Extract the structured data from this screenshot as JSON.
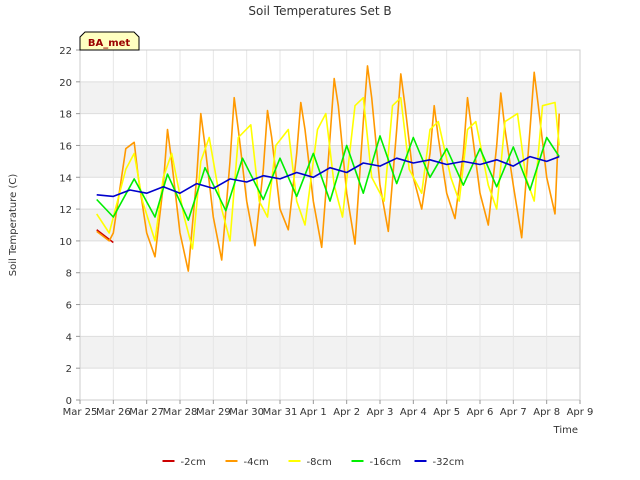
{
  "chart_data": {
    "type": "line",
    "title": "Soil Temperatures Set B",
    "xlabel": "Time",
    "ylabel": "Soil Temperature (C)",
    "badge": "BA_met",
    "ylim": [
      0,
      22
    ],
    "yticks": [
      0,
      2,
      4,
      6,
      8,
      10,
      12,
      14,
      16,
      18,
      20,
      22
    ],
    "xlim": [
      "Mar 25",
      "Apr 9"
    ],
    "xticks": [
      "Mar 25",
      "Mar 26",
      "Mar 27",
      "Mar 28",
      "Mar 29",
      "Mar 30",
      "Mar 31",
      "Apr 1",
      "Apr 2",
      "Apr 3",
      "Apr 4",
      "Apr 5",
      "Apr 6",
      "Apr 7",
      "Apr 8",
      "Apr 9"
    ],
    "grid": true,
    "legend_position": "bottom",
    "series": [
      {
        "name": "-2cm",
        "color": "#cc0000",
        "x": [
          "Mar 25 12:00",
          "Mar 25 18:00",
          "Mar 26 00:00"
        ],
        "values": [
          10.7,
          10.3,
          9.9
        ]
      },
      {
        "name": "-4cm",
        "color": "#ff9900",
        "x": [
          "Mar 25 12:00",
          "Mar 25 21:00",
          "Mar 26 00:00",
          "Mar 26 09:00",
          "Mar 26 15:00",
          "Mar 26 18:00",
          "Mar 27 00:00",
          "Mar 27 06:00",
          "Mar 27 12:00",
          "Mar 27 15:00",
          "Mar 27 18:00",
          "Mar 28 00:00",
          "Mar 28 06:00",
          "Mar 28 12:00",
          "Mar 28 15:00",
          "Mar 28 18:00",
          "Mar 29 00:00",
          "Mar 29 06:00",
          "Mar 29 12:00",
          "Mar 29 15:00",
          "Mar 29 18:00",
          "Mar 30 00:00",
          "Mar 30 06:00",
          "Mar 30 12:00",
          "Mar 30 15:00",
          "Mar 30 18:00",
          "Mar 31 00:00",
          "Mar 31 06:00",
          "Mar 31 12:00",
          "Mar 31 15:00",
          "Mar 31 18:00",
          "Apr 1 00:00",
          "Apr 1 06:00",
          "Apr 1 12:00",
          "Apr 1 15:00",
          "Apr 1 18:00",
          "Apr 2 00:00",
          "Apr 2 06:00",
          "Apr 2 12:00",
          "Apr 2 15:00",
          "Apr 2 18:00",
          "Apr 3 00:00",
          "Apr 3 06:00",
          "Apr 3 12:00",
          "Apr 3 15:00",
          "Apr 3 18:00",
          "Apr 4 00:00",
          "Apr 4 06:00",
          "Apr 4 12:00",
          "Apr 4 15:00",
          "Apr 4 18:00",
          "Apr 5 00:00",
          "Apr 5 06:00",
          "Apr 5 12:00",
          "Apr 5 15:00",
          "Apr 5 18:00",
          "Apr 6 00:00",
          "Apr 6 06:00",
          "Apr 6 12:00",
          "Apr 6 15:00",
          "Apr 6 18:00",
          "Apr 7 00:00",
          "Apr 7 06:00",
          "Apr 7 12:00",
          "Apr 7 15:00",
          "Apr 7 18:00",
          "Apr 8 00:00",
          "Apr 8 06:00",
          "Apr 8 09:00"
        ],
        "values": [
          10.6,
          10.0,
          10.5,
          15.8,
          16.2,
          14.0,
          10.5,
          9.0,
          13.5,
          17.0,
          15.0,
          10.5,
          8.1,
          14.0,
          18.0,
          16.0,
          11.5,
          8.8,
          15.0,
          19.0,
          17.0,
          12.5,
          9.7,
          14.5,
          18.2,
          16.5,
          12.0,
          10.7,
          15.5,
          18.7,
          17.0,
          12.5,
          9.6,
          16.5,
          20.2,
          18.5,
          13.0,
          9.8,
          17.5,
          21.0,
          19.0,
          13.5,
          10.6,
          17.0,
          20.5,
          18.5,
          14.0,
          12.0,
          15.5,
          18.5,
          16.5,
          13.0,
          11.4,
          15.5,
          19.0,
          17.0,
          13.0,
          11.0,
          16.0,
          19.3,
          17.0,
          13.5,
          10.2,
          17.0,
          20.6,
          18.5,
          14.0,
          11.7,
          18.0
        ]
      },
      {
        "name": "-8cm",
        "color": "#ffff00",
        "x": [
          "Mar 25 12:00",
          "Mar 25 21:00",
          "Mar 26 09:00",
          "Mar 26 15:00",
          "Mar 26 21:00",
          "Mar 27 06:00",
          "Mar 27 12:00",
          "Mar 27 18:00",
          "Mar 28 03:00",
          "Mar 28 09:00",
          "Mar 28 15:00",
          "Mar 28 21:00",
          "Mar 29 06:00",
          "Mar 29 12:00",
          "Mar 29 18:00",
          "Mar 30 03:00",
          "Mar 30 09:00",
          "Mar 30 15:00",
          "Mar 30 21:00",
          "Mar 31 06:00",
          "Mar 31 12:00",
          "Mar 31 18:00",
          "Apr 1 03:00",
          "Apr 1 09:00",
          "Apr 1 15:00",
          "Apr 1 21:00",
          "Apr 2 06:00",
          "Apr 2 12:00",
          "Apr 2 18:00",
          "Apr 3 03:00",
          "Apr 3 09:00",
          "Apr 3 15:00",
          "Apr 3 21:00",
          "Apr 4 06:00",
          "Apr 4 12:00",
          "Apr 4 18:00",
          "Apr 5 03:00",
          "Apr 5 09:00",
          "Apr 5 15:00",
          "Apr 5 21:00",
          "Apr 6 06:00",
          "Apr 6 12:00",
          "Apr 6 18:00",
          "Apr 7 03:00",
          "Apr 7 09:00",
          "Apr 7 15:00",
          "Apr 7 21:00",
          "Apr 8 06:00",
          "Apr 8 09:00"
        ],
        "values": [
          11.7,
          10.5,
          14.5,
          15.5,
          12.5,
          10.0,
          14.0,
          15.5,
          11.5,
          9.5,
          15.0,
          16.5,
          12.0,
          10.0,
          16.5,
          17.3,
          12.5,
          11.5,
          16.0,
          17.0,
          12.5,
          11.0,
          17.0,
          18.0,
          13.5,
          11.5,
          18.5,
          19.0,
          14.0,
          12.5,
          18.5,
          19.0,
          14.5,
          13.0,
          17.0,
          17.5,
          14.0,
          12.5,
          17.0,
          17.5,
          13.5,
          12.0,
          17.5,
          18.0,
          14.0,
          12.5,
          18.5,
          18.7,
          16.0
        ]
      },
      {
        "name": "-16cm",
        "color": "#00ee00",
        "x": [
          "Mar 25 12:00",
          "Mar 26 00:00",
          "Mar 26 15:00",
          "Mar 27 06:00",
          "Mar 27 15:00",
          "Mar 28 06:00",
          "Mar 28 18:00",
          "Mar 29 09:00",
          "Mar 29 21:00",
          "Mar 30 12:00",
          "Mar 31 00:00",
          "Mar 31 12:00",
          "Apr 1 00:00",
          "Apr 1 12:00",
          "Apr 2 00:00",
          "Apr 2 12:00",
          "Apr 3 00:00",
          "Apr 3 12:00",
          "Apr 4 00:00",
          "Apr 4 12:00",
          "Apr 5 00:00",
          "Apr 5 12:00",
          "Apr 6 00:00",
          "Apr 6 12:00",
          "Apr 7 00:00",
          "Apr 7 12:00",
          "Apr 8 00:00",
          "Apr 8 09:00"
        ],
        "values": [
          12.6,
          11.5,
          13.9,
          11.5,
          14.2,
          11.3,
          14.6,
          11.9,
          15.2,
          12.6,
          15.2,
          12.8,
          15.5,
          12.5,
          16.0,
          13.0,
          16.6,
          13.6,
          16.5,
          14.0,
          15.8,
          13.5,
          15.8,
          13.4,
          15.9,
          13.2,
          16.5,
          15.3
        ]
      },
      {
        "name": "-32cm",
        "color": "#0000cc",
        "x": [
          "Mar 25 12:00",
          "Mar 26 00:00",
          "Mar 26 12:00",
          "Mar 27 00:00",
          "Mar 27 12:00",
          "Mar 28 00:00",
          "Mar 28 12:00",
          "Mar 29 00:00",
          "Mar 29 12:00",
          "Mar 30 00:00",
          "Mar 30 12:00",
          "Mar 31 00:00",
          "Mar 31 12:00",
          "Apr 1 00:00",
          "Apr 1 12:00",
          "Apr 2 00:00",
          "Apr 2 12:00",
          "Apr 3 00:00",
          "Apr 3 12:00",
          "Apr 4 00:00",
          "Apr 4 12:00",
          "Apr 5 00:00",
          "Apr 5 12:00",
          "Apr 6 00:00",
          "Apr 6 12:00",
          "Apr 7 00:00",
          "Apr 7 12:00",
          "Apr 8 00:00",
          "Apr 8 09:00"
        ],
        "values": [
          12.9,
          12.8,
          13.2,
          13.0,
          13.4,
          13.0,
          13.6,
          13.3,
          13.9,
          13.7,
          14.1,
          13.9,
          14.3,
          14.0,
          14.6,
          14.3,
          14.9,
          14.7,
          15.2,
          14.9,
          15.1,
          14.8,
          15.0,
          14.8,
          15.1,
          14.7,
          15.3,
          15.0,
          15.3
        ]
      }
    ]
  }
}
